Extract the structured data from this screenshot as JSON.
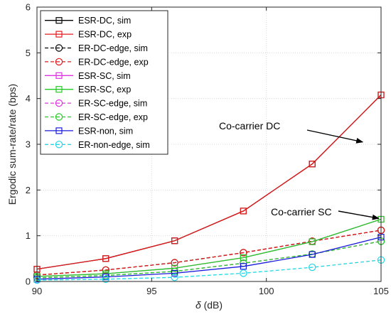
{
  "chart_data": {
    "type": "line",
    "title": "",
    "xlabel_symbol": "δ",
    "xlabel_unit": " (dB)",
    "ylabel": "Ergodic sum-rate/rate (bps)",
    "xlim": [
      90,
      105
    ],
    "ylim": [
      0,
      6
    ],
    "xticks": [
      90,
      95,
      100,
      105
    ],
    "yticks": [
      0,
      1,
      2,
      3,
      4,
      5,
      6
    ],
    "grid": true,
    "legend_position": "top-left",
    "x": [
      90,
      93,
      96,
      99,
      102,
      105
    ],
    "series": [
      {
        "name": "ESR-DC, sim",
        "values": [
          0.27,
          0.5,
          0.89,
          1.54,
          2.57,
          4.08
        ],
        "color": "#000000",
        "dash": "solid",
        "marker": "square"
      },
      {
        "name": "ESR-DC, exp",
        "values": [
          0.27,
          0.5,
          0.89,
          1.54,
          2.57,
          4.08
        ],
        "color": "#e41a1c",
        "dash": "solid",
        "marker": "square"
      },
      {
        "name": "ER-DC-edge, sim",
        "values": [
          0.14,
          0.25,
          0.41,
          0.63,
          0.88,
          1.12
        ],
        "color": "#000000",
        "dash": "dashed",
        "marker": "circle"
      },
      {
        "name": "ER-DC-edge, exp",
        "values": [
          0.14,
          0.25,
          0.41,
          0.63,
          0.88,
          1.12
        ],
        "color": "#e41a1c",
        "dash": "dashed",
        "marker": "circle"
      },
      {
        "name": "ESR-SC, sim",
        "values": [
          0.11,
          0.17,
          0.29,
          0.52,
          0.87,
          1.36
        ],
        "color": "#e033e0",
        "dash": "solid",
        "marker": "square"
      },
      {
        "name": "ESR-SC, exp",
        "values": [
          0.11,
          0.17,
          0.29,
          0.52,
          0.87,
          1.36
        ],
        "color": "#22cc22",
        "dash": "solid",
        "marker": "square"
      },
      {
        "name": "ER-SC-edge, sim",
        "values": [
          0.08,
          0.13,
          0.22,
          0.4,
          0.6,
          0.88
        ],
        "color": "#e033e0",
        "dash": "dashed",
        "marker": "circle"
      },
      {
        "name": "ER-SC-edge, exp",
        "values": [
          0.08,
          0.13,
          0.22,
          0.4,
          0.6,
          0.88
        ],
        "color": "#22cc22",
        "dash": "dashed",
        "marker": "circle"
      },
      {
        "name": "ESR-non, sim",
        "values": [
          0.05,
          0.1,
          0.18,
          0.33,
          0.59,
          0.97
        ],
        "color": "#1a1adb",
        "dash": "solid",
        "marker": "square"
      },
      {
        "name": "ER-non-edge, sim",
        "values": [
          0.03,
          0.05,
          0.09,
          0.18,
          0.31,
          0.47
        ],
        "color": "#22d6e6",
        "dash": "dashed",
        "marker": "circle"
      }
    ],
    "annotations": [
      {
        "text": "Co-carrier DC",
        "x": 104.2,
        "y": 3.05
      },
      {
        "text": "Co-carrier SC",
        "x": 104.9,
        "y": 1.38
      }
    ]
  }
}
